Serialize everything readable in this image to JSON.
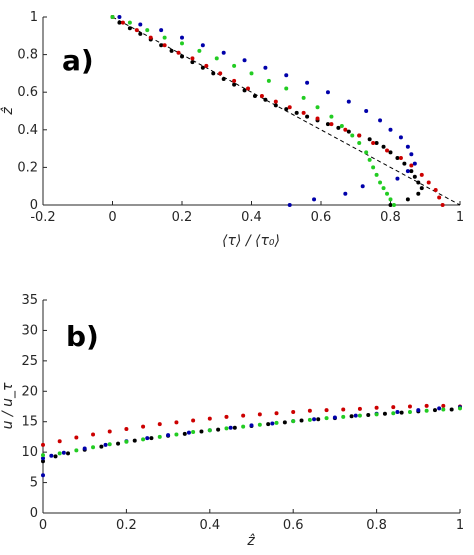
{
  "chart_data": [
    {
      "type": "scatter",
      "panel_label": "a)",
      "xlabel": "⟨τ⟩ / ⟨τ₀⟩",
      "ylabel": "ẑ",
      "xlim": [
        -0.2,
        1
      ],
      "ylim": [
        0,
        1
      ],
      "xticks": [
        -0.2,
        0,
        0.2,
        0.4,
        0.6,
        0.8,
        1
      ],
      "yticks": [
        0,
        0.2,
        0.4,
        0.6,
        0.8,
        1
      ],
      "xticklabels": [
        "-0.2",
        "0",
        "0.2",
        "0.4",
        "0.6",
        "0.8",
        "1"
      ],
      "yticklabels": [
        "0",
        "0.2",
        "0.4",
        "0.6",
        "0.8",
        "1"
      ],
      "grid": false,
      "series": [
        {
          "color": "#000000",
          "x": [
            0.0,
            0.02,
            0.05,
            0.08,
            0.11,
            0.14,
            0.17,
            0.2,
            0.23,
            0.26,
            0.29,
            0.32,
            0.35,
            0.38,
            0.41,
            0.44,
            0.47,
            0.5,
            0.53,
            0.56,
            0.59,
            0.62,
            0.65,
            0.68,
            0.71,
            0.74,
            0.76,
            0.78,
            0.8,
            0.82,
            0.84,
            0.86,
            0.87,
            0.88,
            0.89,
            0.88,
            0.85,
            0.8
          ],
          "y": [
            1.0,
            0.97,
            0.94,
            0.91,
            0.88,
            0.85,
            0.82,
            0.79,
            0.76,
            0.73,
            0.7,
            0.67,
            0.64,
            0.61,
            0.58,
            0.56,
            0.53,
            0.51,
            0.49,
            0.47,
            0.45,
            0.43,
            0.41,
            0.39,
            0.37,
            0.35,
            0.33,
            0.31,
            0.28,
            0.25,
            0.22,
            0.18,
            0.15,
            0.12,
            0.09,
            0.06,
            0.03,
            0.0
          ]
        },
        {
          "color": "#cc0000",
          "x": [
            0.0,
            0.03,
            0.07,
            0.11,
            0.15,
            0.19,
            0.23,
            0.27,
            0.31,
            0.35,
            0.39,
            0.43,
            0.47,
            0.51,
            0.55,
            0.59,
            0.63,
            0.67,
            0.71,
            0.75,
            0.79,
            0.83,
            0.86,
            0.89,
            0.91,
            0.93,
            0.94,
            0.95
          ],
          "y": [
            1.0,
            0.97,
            0.93,
            0.89,
            0.85,
            0.81,
            0.78,
            0.74,
            0.7,
            0.66,
            0.62,
            0.58,
            0.55,
            0.52,
            0.49,
            0.46,
            0.43,
            0.4,
            0.37,
            0.33,
            0.29,
            0.25,
            0.21,
            0.16,
            0.12,
            0.08,
            0.04,
            0.0
          ]
        },
        {
          "color": "#0000aa",
          "x": [
            0.02,
            0.08,
            0.14,
            0.2,
            0.26,
            0.32,
            0.38,
            0.44,
            0.5,
            0.56,
            0.62,
            0.68,
            0.73,
            0.77,
            0.8,
            0.83,
            0.85,
            0.86,
            0.87,
            0.85,
            0.82,
            0.72,
            0.67,
            0.58,
            0.51
          ],
          "y": [
            1.0,
            0.96,
            0.93,
            0.89,
            0.85,
            0.81,
            0.77,
            0.73,
            0.69,
            0.65,
            0.6,
            0.55,
            0.5,
            0.45,
            0.4,
            0.36,
            0.31,
            0.27,
            0.22,
            0.18,
            0.14,
            0.1,
            0.06,
            0.03,
            0.0
          ]
        },
        {
          "color": "#22cc22",
          "x": [
            0.0,
            0.05,
            0.1,
            0.15,
            0.2,
            0.25,
            0.3,
            0.35,
            0.4,
            0.45,
            0.5,
            0.55,
            0.59,
            0.63,
            0.66,
            0.69,
            0.71,
            0.73,
            0.74,
            0.75,
            0.76,
            0.77,
            0.78,
            0.79,
            0.8,
            0.81
          ],
          "y": [
            1.0,
            0.97,
            0.93,
            0.89,
            0.86,
            0.82,
            0.78,
            0.74,
            0.7,
            0.66,
            0.62,
            0.57,
            0.52,
            0.47,
            0.42,
            0.37,
            0.33,
            0.28,
            0.24,
            0.2,
            0.16,
            0.12,
            0.09,
            0.06,
            0.03,
            0.0
          ]
        }
      ],
      "reference_line": {
        "x": [
          0,
          1
        ],
        "y": [
          1,
          0
        ],
        "style": "dashed"
      }
    },
    {
      "type": "scatter",
      "panel_label": "b)",
      "xlabel": "ẑ",
      "ylabel": "u / u_τ",
      "xlim": [
        0,
        1
      ],
      "ylim": [
        0,
        35
      ],
      "xticks": [
        0,
        0.2,
        0.4,
        0.6,
        0.8,
        1
      ],
      "yticks": [
        0,
        5,
        10,
        15,
        20,
        25,
        30,
        35
      ],
      "xticklabels": [
        "0",
        "0.2",
        "0.4",
        "0.6",
        "0.8",
        "1"
      ],
      "yticklabels": [
        "0",
        "5",
        "10",
        "15",
        "20",
        "25",
        "30",
        "35"
      ],
      "grid": false,
      "series": [
        {
          "color": "#cc0000",
          "x": [
            0.0,
            0.04,
            0.08,
            0.12,
            0.16,
            0.2,
            0.24,
            0.28,
            0.32,
            0.36,
            0.4,
            0.44,
            0.48,
            0.52,
            0.56,
            0.6,
            0.64,
            0.68,
            0.72,
            0.76,
            0.8,
            0.84,
            0.88,
            0.92,
            0.96,
            1.0
          ],
          "y": [
            11.2,
            11.8,
            12.4,
            12.9,
            13.4,
            13.8,
            14.2,
            14.6,
            14.9,
            15.2,
            15.5,
            15.8,
            16.0,
            16.2,
            16.4,
            16.6,
            16.8,
            16.9,
            17.0,
            17.1,
            17.3,
            17.4,
            17.5,
            17.6,
            17.6,
            17.5
          ]
        },
        {
          "color": "#000000",
          "x": [
            0.0,
            0.03,
            0.06,
            0.1,
            0.14,
            0.18,
            0.22,
            0.26,
            0.3,
            0.34,
            0.38,
            0.42,
            0.46,
            0.5,
            0.54,
            0.58,
            0.62,
            0.66,
            0.7,
            0.74,
            0.78,
            0.82,
            0.86,
            0.9,
            0.94,
            0.98
          ],
          "y": [
            8.5,
            9.3,
            9.8,
            10.4,
            10.9,
            11.4,
            11.9,
            12.3,
            12.7,
            13.0,
            13.4,
            13.7,
            14.0,
            14.3,
            14.6,
            14.9,
            15.2,
            15.4,
            15.6,
            15.9,
            16.1,
            16.3,
            16.5,
            16.7,
            16.9,
            17.0
          ]
        },
        {
          "color": "#0000aa",
          "x": [
            0.0,
            0.0,
            0.02,
            0.05,
            0.1,
            0.15,
            0.2,
            0.25,
            0.3,
            0.35,
            0.4,
            0.45,
            0.5,
            0.55,
            0.6,
            0.65,
            0.7,
            0.75,
            0.8,
            0.85,
            0.9,
            0.95,
            1.0
          ],
          "y": [
            6.2,
            9.0,
            9.4,
            9.9,
            10.6,
            11.2,
            11.8,
            12.3,
            12.8,
            13.2,
            13.6,
            14.0,
            14.4,
            14.7,
            15.1,
            15.4,
            15.7,
            16.0,
            16.3,
            16.6,
            16.9,
            17.2,
            17.4
          ]
        },
        {
          "color": "#22cc22",
          "x": [
            0.0,
            0.04,
            0.08,
            0.12,
            0.16,
            0.2,
            0.24,
            0.28,
            0.32,
            0.36,
            0.4,
            0.44,
            0.48,
            0.52,
            0.56,
            0.6,
            0.64,
            0.68,
            0.72,
            0.76,
            0.8,
            0.84,
            0.88,
            0.92,
            0.96,
            1.0
          ],
          "y": [
            9.5,
            9.8,
            10.3,
            10.8,
            11.3,
            11.7,
            12.1,
            12.5,
            12.9,
            13.3,
            13.6,
            13.9,
            14.2,
            14.5,
            14.8,
            15.1,
            15.3,
            15.6,
            15.8,
            16.0,
            16.2,
            16.4,
            16.6,
            16.8,
            17.0,
            17.2
          ]
        }
      ]
    }
  ]
}
